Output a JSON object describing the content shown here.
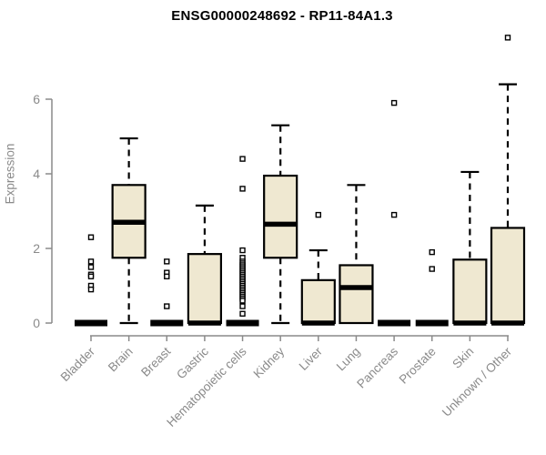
{
  "chart_data": {
    "type": "boxplot",
    "title": "ENSG00000248692 - RP11-84A1.3",
    "ylabel": "Expression",
    "xlabel": "",
    "ylim": [
      0,
      6
    ],
    "yticks": [
      0,
      2,
      4,
      6
    ],
    "grid": false,
    "legend": null,
    "colors": {
      "box_fill": "#EFE8D1",
      "box_stroke": "#000000",
      "median": "#000000",
      "whisker": "#000000",
      "outlier_stroke": "#000000",
      "axis": "#8A8A8A",
      "title": "#000000",
      "background": "#FFFFFF"
    },
    "categories": [
      "Bladder",
      "Brain",
      "Breast",
      "Gastric",
      "Hematopoietic cells",
      "Kidney",
      "Liver",
      "Lung",
      "Pancreas",
      "Prostate",
      "Skin",
      "Unknown / Other"
    ],
    "series": [
      {
        "name": "Bladder",
        "q1": 0,
        "median": 0,
        "q3": 0,
        "whisker_low": 0,
        "whisker_high": 0,
        "outliers": [
          2.3,
          1.65,
          1.5,
          1.3,
          1.25,
          1.0,
          0.9
        ]
      },
      {
        "name": "Brain",
        "q1": 1.75,
        "median": 2.7,
        "q3": 3.7,
        "whisker_low": 0,
        "whisker_high": 4.95,
        "outliers": []
      },
      {
        "name": "Breast",
        "q1": 0,
        "median": 0,
        "q3": 0,
        "whisker_low": 0,
        "whisker_high": 0,
        "outliers": [
          1.65,
          1.35,
          1.25,
          0.45
        ]
      },
      {
        "name": "Gastric",
        "q1": 0,
        "median": 0,
        "q3": 1.85,
        "whisker_low": 0,
        "whisker_high": 3.15,
        "outliers": []
      },
      {
        "name": "Hematopoietic cells",
        "q1": 0,
        "median": 0,
        "q3": 0,
        "whisker_low": 0,
        "whisker_high": 0,
        "outliers": [
          4.4,
          3.6,
          1.95,
          1.75,
          1.65,
          1.6,
          1.55,
          1.5,
          1.45,
          1.4,
          1.35,
          1.3,
          1.25,
          1.2,
          1.15,
          1.1,
          1.05,
          1.0,
          0.95,
          0.9,
          0.85,
          0.8,
          0.75,
          0.7,
          0.65,
          0.6,
          0.45,
          0.25
        ]
      },
      {
        "name": "Kidney",
        "q1": 1.75,
        "median": 2.65,
        "q3": 3.95,
        "whisker_low": 0,
        "whisker_high": 5.3,
        "outliers": []
      },
      {
        "name": "Liver",
        "q1": 0,
        "median": 0,
        "q3": 1.15,
        "whisker_low": 0,
        "whisker_high": 1.95,
        "outliers": [
          2.9
        ]
      },
      {
        "name": "Lung",
        "q1": 0,
        "median": 0.95,
        "q3": 1.55,
        "whisker_low": 0,
        "whisker_high": 3.7,
        "outliers": []
      },
      {
        "name": "Pancreas",
        "q1": 0,
        "median": 0,
        "q3": 0,
        "whisker_low": 0,
        "whisker_high": 0,
        "outliers": [
          5.9,
          2.9
        ]
      },
      {
        "name": "Prostate",
        "q1": 0,
        "median": 0,
        "q3": 0,
        "whisker_low": 0,
        "whisker_high": 0,
        "outliers": [
          1.9,
          1.45
        ]
      },
      {
        "name": "Skin",
        "q1": 0,
        "median": 0,
        "q3": 1.7,
        "whisker_low": 0,
        "whisker_high": 4.05,
        "outliers": []
      },
      {
        "name": "Unknown / Other",
        "q1": 0,
        "median": 0,
        "q3": 2.55,
        "whisker_low": 0,
        "whisker_high": 6.4,
        "outliers": [
          7.65
        ]
      }
    ]
  }
}
